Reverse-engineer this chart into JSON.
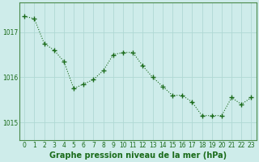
{
  "x": [
    0,
    1,
    2,
    3,
    4,
    5,
    6,
    7,
    8,
    9,
    10,
    11,
    12,
    13,
    14,
    15,
    16,
    17,
    18,
    19,
    20,
    21,
    22,
    23
  ],
  "y": [
    1017.35,
    1017.3,
    1016.75,
    1016.6,
    1016.35,
    1015.75,
    1015.85,
    1015.95,
    1016.15,
    1016.5,
    1016.55,
    1016.55,
    1016.25,
    1016.0,
    1015.8,
    1015.6,
    1015.6,
    1015.45,
    1015.15,
    1015.15,
    1015.15,
    1015.55,
    1015.4,
    1015.55
  ],
  "line_color": "#1a6b1a",
  "marker": "+",
  "marker_size": 4,
  "bg_color": "#ceecea",
  "grid_color": "#b0d8d4",
  "ylabel_ticks": [
    1015,
    1016,
    1017
  ],
  "xlabel_ticks": [
    0,
    1,
    2,
    3,
    4,
    5,
    6,
    7,
    8,
    9,
    10,
    11,
    12,
    13,
    14,
    15,
    16,
    17,
    18,
    19,
    20,
    21,
    22,
    23
  ],
  "xlabel_labels": [
    "0",
    "1",
    "2",
    "3",
    "4",
    "5",
    "6",
    "7",
    "8",
    "9",
    "10",
    "11",
    "12",
    "13",
    "14",
    "15",
    "16",
    "17",
    "18",
    "19",
    "20",
    "21",
    "22",
    "23"
  ],
  "title": "Graphe pression niveau de la mer (hPa)",
  "title_color": "#1a6b1a",
  "title_fontsize": 7,
  "ylim": [
    1014.6,
    1017.65
  ],
  "xlim": [
    -0.5,
    23.5
  ],
  "tick_color": "#1a6b1a",
  "tick_fontsize": 5.5,
  "spine_color": "#4a8a4a"
}
